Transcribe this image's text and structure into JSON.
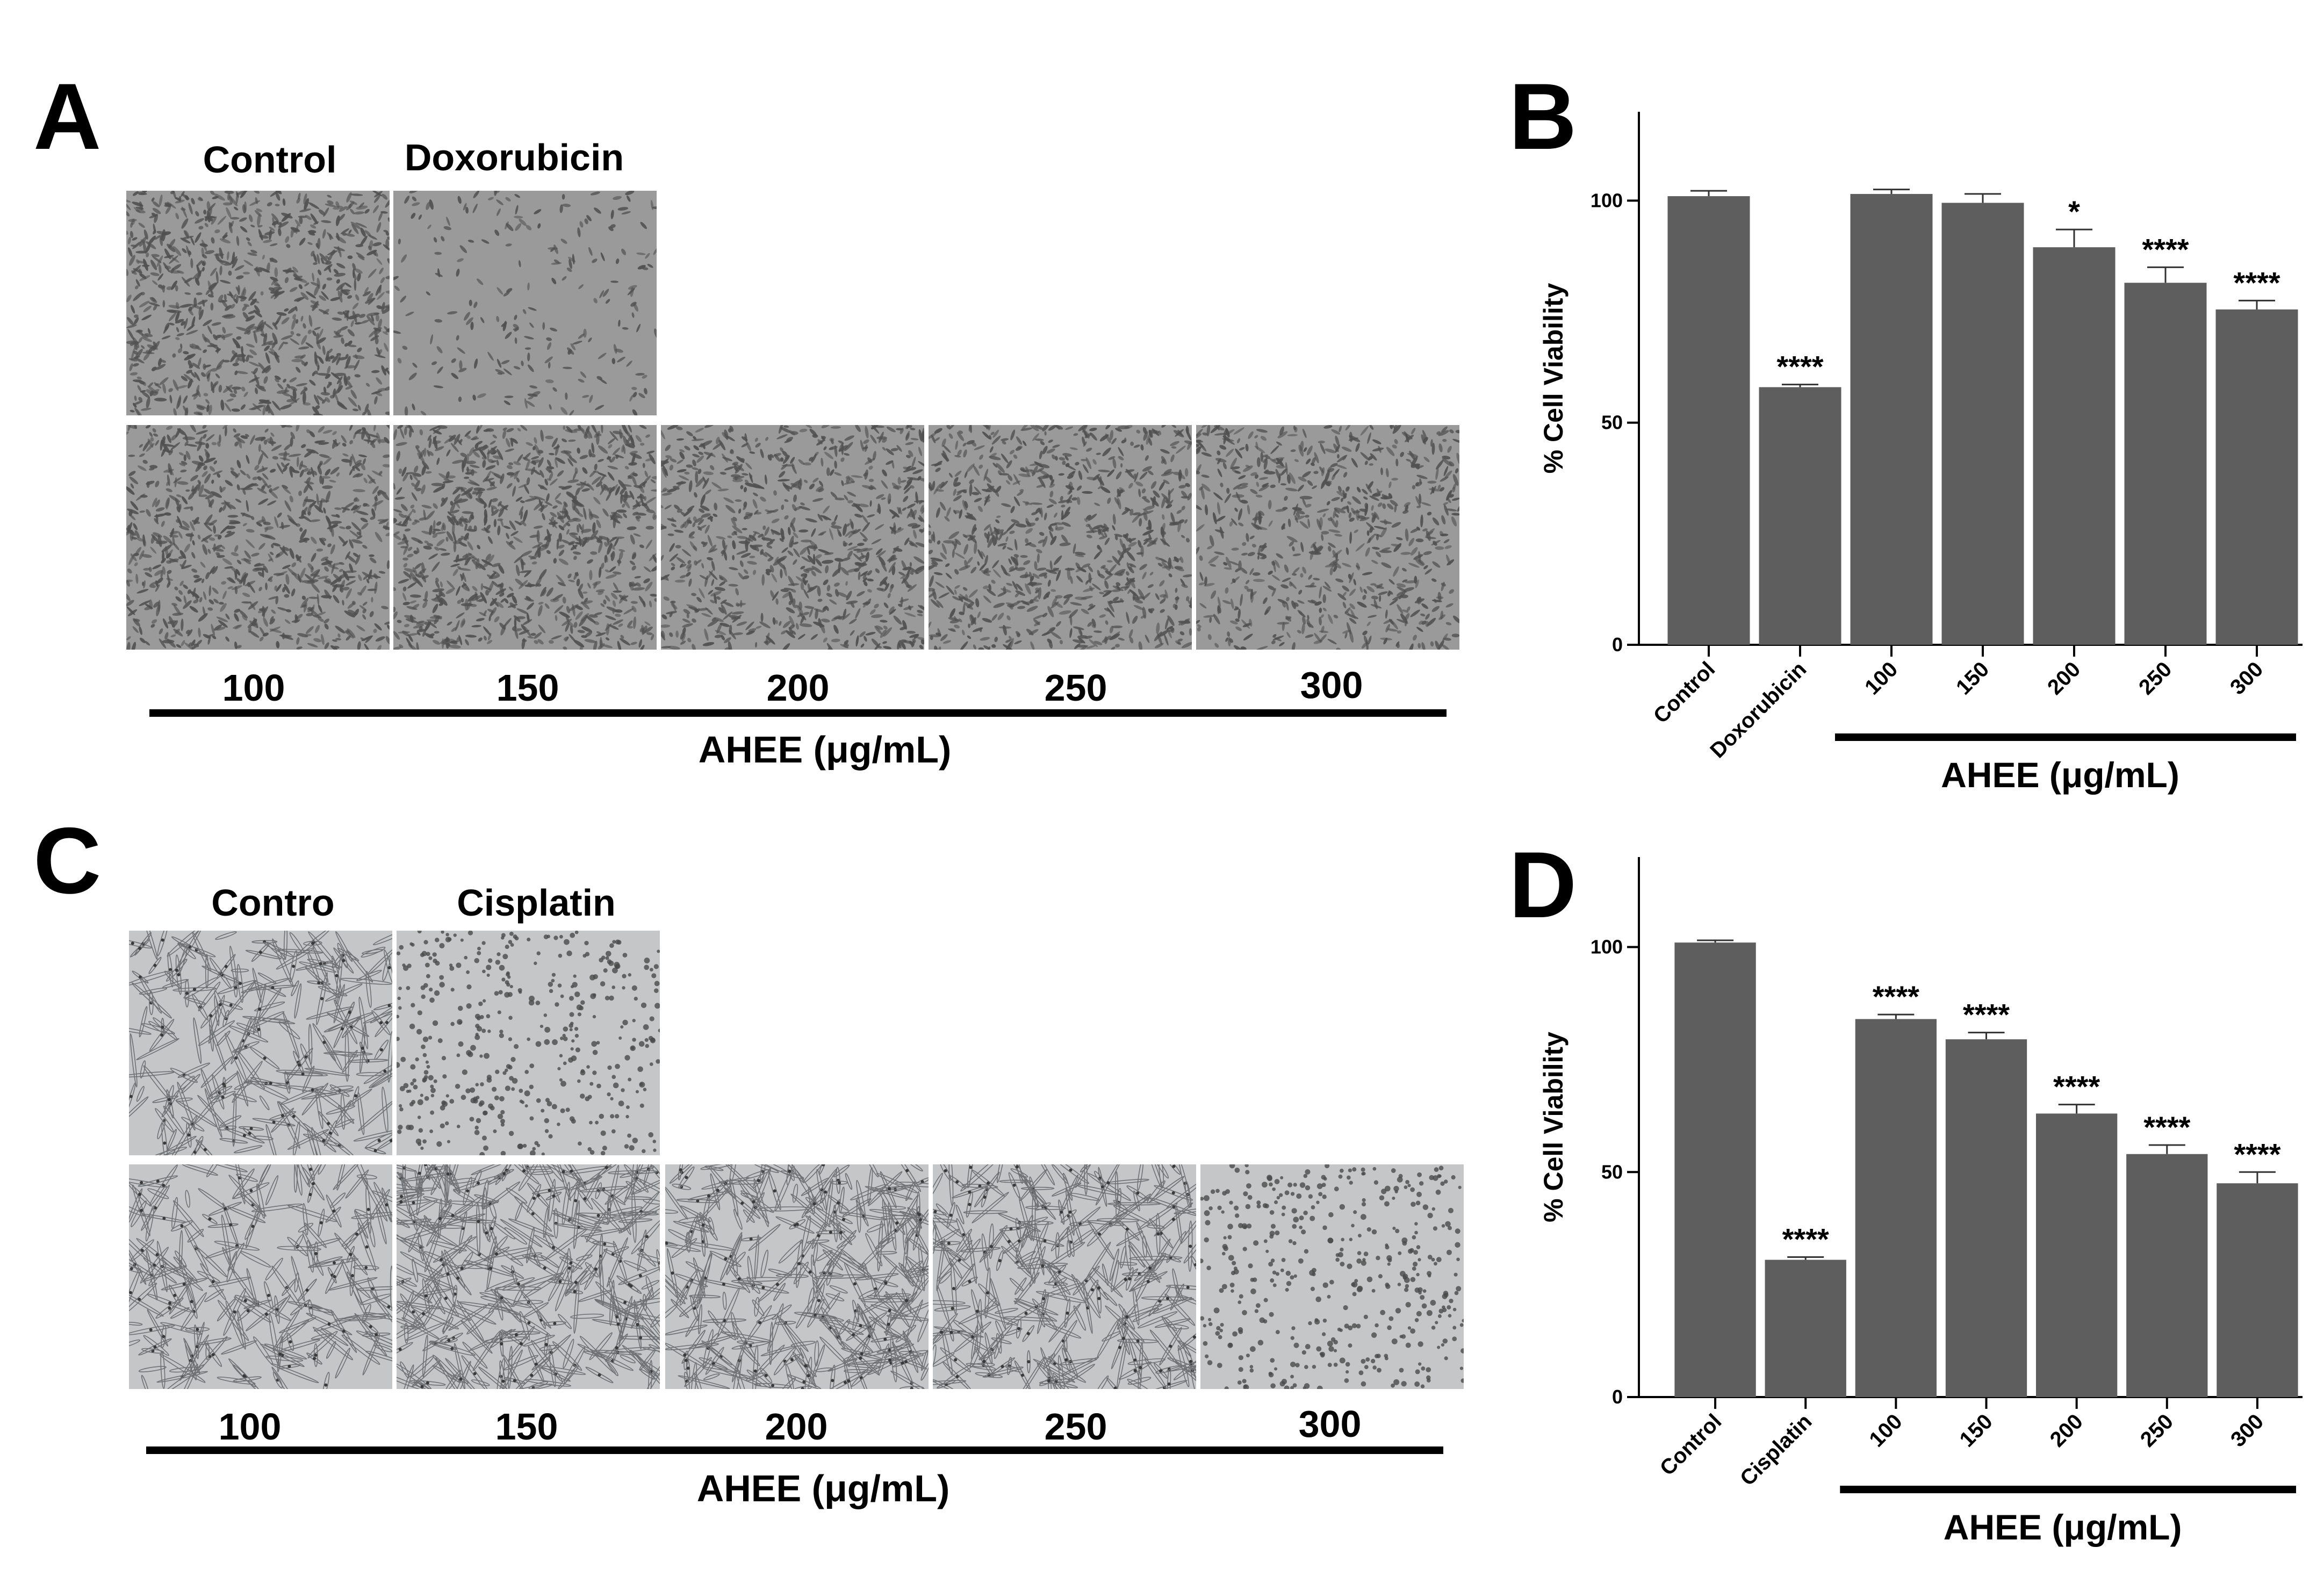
{
  "panels": {
    "A": {
      "letter": "A",
      "top_labels": [
        "Control",
        "Doxorubicin"
      ],
      "dose_labels": [
        "100",
        "150",
        "200",
        "250",
        "300"
      ],
      "group_label": "AHEE (μg/mL)"
    },
    "C": {
      "letter": "C",
      "top_labels": [
        "Contro",
        "Cisplatin"
      ],
      "dose_labels": [
        "100",
        "150",
        "200",
        "250",
        "300"
      ],
      "group_label": "AHEE (μg/mL)"
    },
    "B": {
      "letter": "B"
    },
    "D": {
      "letter": "D"
    }
  },
  "colors": {
    "bar": "#5e5e5e",
    "axis": "#000000",
    "micrograph_dense": "#9a9a9a",
    "micrograph_light": "#c4c6c8"
  },
  "chart_data": [
    {
      "type": "bar",
      "panel": "B",
      "categories": [
        "Control",
        "Doxorubicin",
        "100",
        "150",
        "200",
        "250",
        "300"
      ],
      "values": [
        101,
        58,
        101.5,
        99.5,
        89.5,
        81.5,
        75.5
      ],
      "errors": [
        1.2,
        0.6,
        1.0,
        2.0,
        4.0,
        3.5,
        2.0
      ],
      "significance": [
        "",
        "****",
        "",
        "",
        "*",
        "****",
        "****"
      ],
      "ylabel": "% Cell Viability",
      "ylim": [
        0,
        120
      ],
      "yticks": [
        0,
        50,
        100
      ],
      "group_label": "AHEE (μg/mL)",
      "grid": false
    },
    {
      "type": "bar",
      "panel": "D",
      "categories": [
        "Control",
        "Cisplatin",
        "100",
        "150",
        "200",
        "250",
        "300"
      ],
      "values": [
        101,
        30.5,
        84,
        79.5,
        63,
        54,
        47.5
      ],
      "errors": [
        0.5,
        0.6,
        1.0,
        1.5,
        2.0,
        2.0,
        2.5
      ],
      "significance": [
        "",
        "****",
        "****",
        "****",
        "****",
        "****",
        "****"
      ],
      "ylabel": "% Cell Viability",
      "ylim": [
        0,
        120
      ],
      "yticks": [
        0,
        50,
        100
      ],
      "group_label": "AHEE (μg/mL)",
      "grid": false
    }
  ]
}
